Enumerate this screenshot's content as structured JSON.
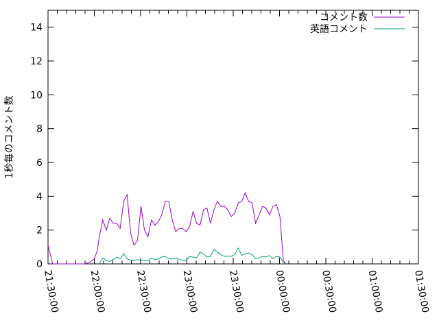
{
  "chart_data": {
    "type": "line",
    "title": "",
    "xlabel": "",
    "ylabel": "1秒毎のコメント数",
    "ylim": [
      0,
      15
    ],
    "xlim": [
      "21:30:00",
      "01:30:00"
    ],
    "yticks": [
      "0",
      "2",
      "4",
      "6",
      "8",
      "10",
      "12",
      "14"
    ],
    "xticks": [
      "21:30:00",
      "22:00:00",
      "22:30:00",
      "23:00:00",
      "23:30:00",
      "00:00:00",
      "00:30:00",
      "01:00:00",
      "01:30:00"
    ],
    "grid": false,
    "legend_position": "top-right",
    "x": [
      "21:30:00",
      "21:33:00",
      "21:54:00",
      "21:57:00",
      "22:00:00",
      "22:02:00",
      "22:03:00",
      "22:05:30",
      "22:07:45",
      "22:10:00",
      "22:12:15",
      "22:14:30",
      "22:16:45",
      "22:19:00",
      "22:21:15",
      "22:23:30",
      "22:25:45",
      "22:28:00",
      "22:30:15",
      "22:32:30",
      "22:34:45",
      "22:37:00",
      "22:39:15",
      "22:41:30",
      "22:43:45",
      "22:46:00",
      "22:48:15",
      "22:50:30",
      "22:52:45",
      "22:55:00",
      "22:57:15",
      "22:59:30",
      "23:01:45",
      "23:04:00",
      "23:06:15",
      "23:08:30",
      "23:10:45",
      "23:13:00",
      "23:15:15",
      "23:17:30",
      "23:19:45",
      "23:22:00",
      "23:24:15",
      "23:26:30",
      "23:28:45",
      "23:31:00",
      "23:33:15",
      "23:35:30",
      "23:37:45",
      "23:40:00",
      "23:42:15",
      "23:44:30",
      "23:46:45",
      "23:49:00",
      "23:51:15",
      "23:53:30",
      "23:55:45",
      "23:58:00",
      "00:00:15",
      "00:02:30",
      "00:04:00"
    ],
    "series": [
      {
        "name": "コメント数",
        "color": "#9400d3",
        "values": [
          1.1,
          0,
          0,
          0.1,
          0.3,
          0.8,
          1.5,
          2.6,
          2.0,
          2.7,
          2.4,
          2.4,
          2.1,
          3.7,
          4.1,
          1.8,
          1.1,
          1.4,
          3.4,
          2.0,
          1.6,
          2.6,
          2.3,
          2.5,
          2.9,
          3.7,
          3.7,
          2.6,
          1.9,
          2.1,
          2.1,
          1.9,
          2.2,
          3.1,
          2.4,
          2.3,
          3.2,
          3.3,
          2.4,
          3.2,
          3.7,
          3.4,
          3.4,
          3.2,
          2.8,
          3.0,
          3.6,
          3.7,
          4.2,
          3.7,
          3.6,
          2.4,
          2.9,
          3.4,
          3.3,
          2.9,
          3.4,
          3.5,
          2.8,
          0.2,
          0
        ]
      },
      {
        "name": "英語コメント",
        "color": "#009e73",
        "values": [
          null,
          null,
          null,
          null,
          null,
          null,
          0,
          0.35,
          0.2,
          0.15,
          0.25,
          0.4,
          0.3,
          0.6,
          0.3,
          0.2,
          0.2,
          0.25,
          0.2,
          0.2,
          0.2,
          0.35,
          0.25,
          0.3,
          0.4,
          0.45,
          0.3,
          0.3,
          0.35,
          0.25,
          0.2,
          0.2,
          0.45,
          0.4,
          0.35,
          0.7,
          0.6,
          0.4,
          0.45,
          0.85,
          0.7,
          0.55,
          0.45,
          0.45,
          0.45,
          0.55,
          0.95,
          0.5,
          0.6,
          0.65,
          0.55,
          0.3,
          0.35,
          0.45,
          0.4,
          0.5,
          0.3,
          0.45,
          0.4,
          0.1,
          0
        ]
      }
    ]
  }
}
